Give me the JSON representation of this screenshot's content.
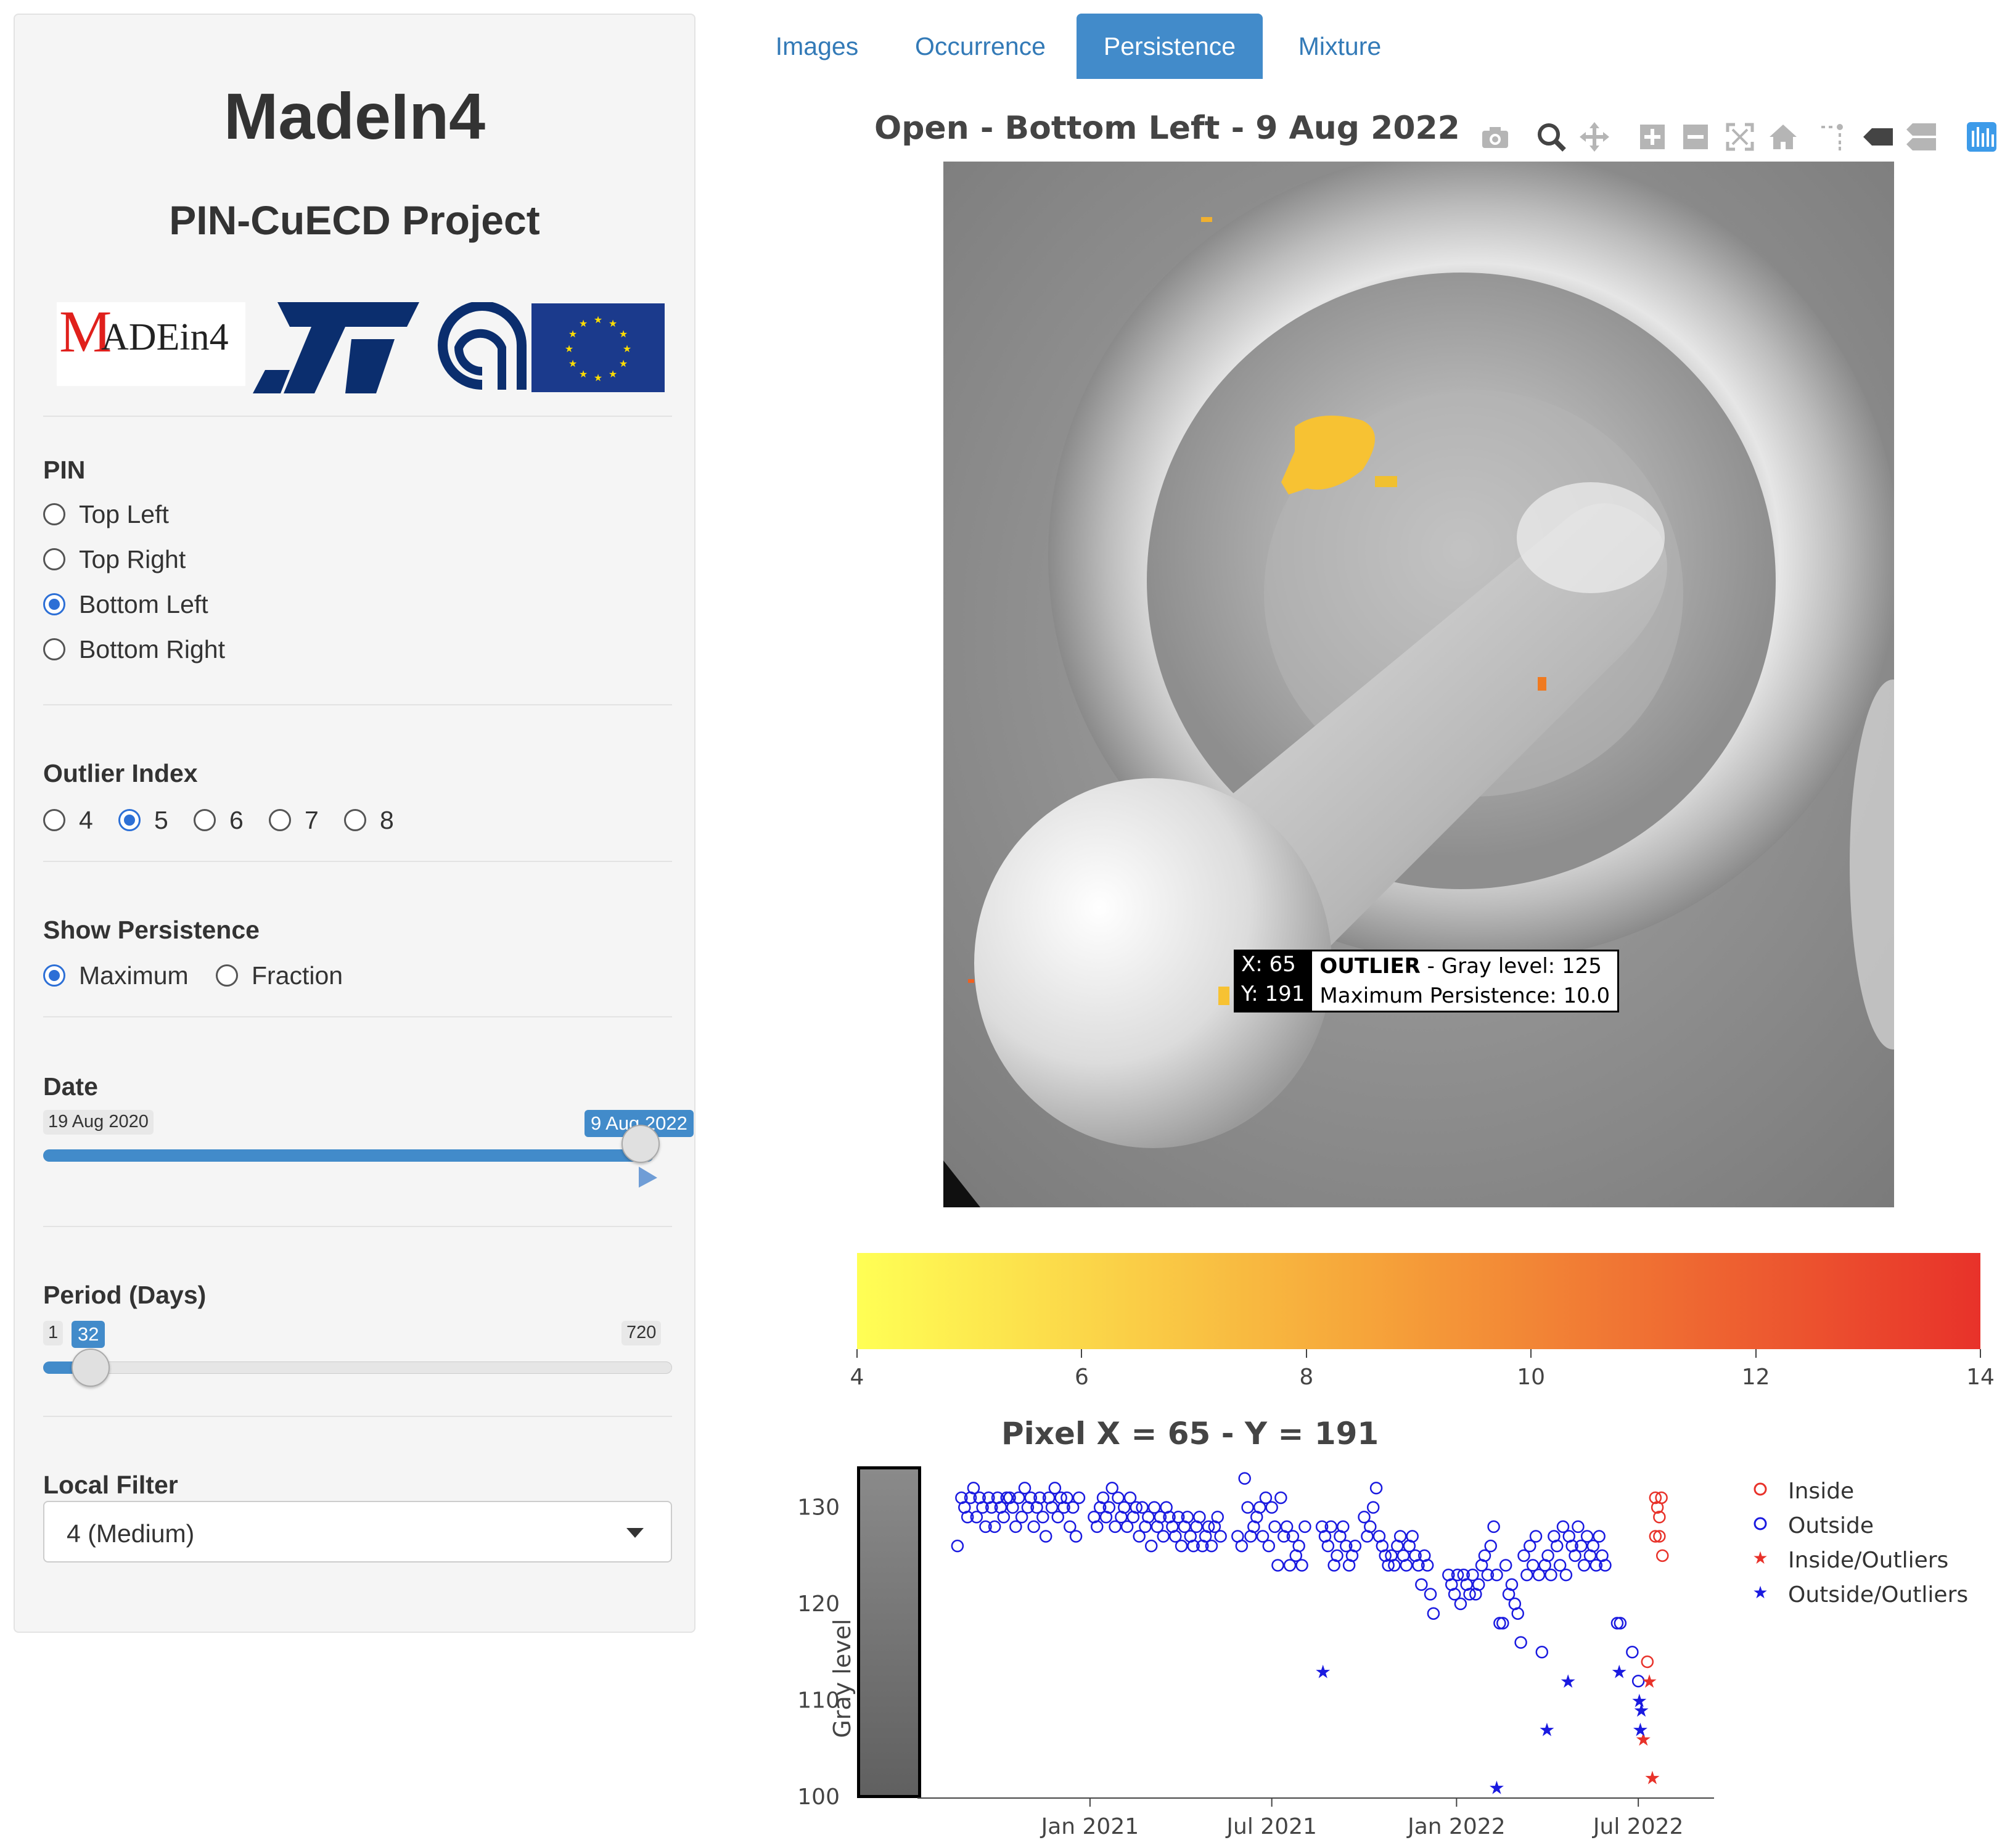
{
  "app": {
    "title": "MadeIn4",
    "subtitle": "PIN-CuECD Project"
  },
  "logos": {
    "madein4_m": "M",
    "madein4_rest": "ADEin4",
    "colors": {
      "eu_blue": "#1b3a8c",
      "st_blue": "#0b2e6e",
      "madein4_red": "#e0201c"
    }
  },
  "pin": {
    "label": "PIN",
    "options": [
      "Top Left",
      "Top Right",
      "Bottom Left",
      "Bottom Right"
    ],
    "selected": "Bottom Left"
  },
  "outlier_index": {
    "label": "Outlier Index",
    "options": [
      "4",
      "5",
      "6",
      "7",
      "8"
    ],
    "selected": "5"
  },
  "show_persistence": {
    "label": "Show Persistence",
    "options": [
      "Maximum",
      "Fraction"
    ],
    "selected": "Maximum"
  },
  "date": {
    "label": "Date",
    "min": "19 Aug 2020",
    "value": "9 Aug 2022",
    "fraction": 1.0
  },
  "period": {
    "label": "Period (Days)",
    "min": "1",
    "max": "720",
    "value": "32"
  },
  "local_filter": {
    "label": "Local Filter",
    "value": "4 (Medium)"
  },
  "tabs": [
    {
      "label": "Images",
      "active": false
    },
    {
      "label": "Occurrence",
      "active": false
    },
    {
      "label": "Persistence",
      "active": true
    },
    {
      "label": "Mixture",
      "active": false
    }
  ],
  "main_plot": {
    "title": "Open - Bottom Left - 9 Aug 2022",
    "tooltip": {
      "x_label": "X: 65",
      "y_label": "Y: 191",
      "bold": "OUTLIER",
      "line1_rest": " - Gray level: 125",
      "line2": "Maximum Persistence: 10.0"
    },
    "colorbar": {
      "ticks": [
        "4",
        "6",
        "8",
        "10",
        "12",
        "14"
      ],
      "min": 4,
      "max": 14,
      "colors": [
        "#ffff55",
        "#f6a53a",
        "#e8322a"
      ]
    },
    "modebar_icons": [
      "camera-icon",
      "zoom-icon",
      "pan-icon",
      "zoom-in-icon",
      "zoom-out-icon",
      "autoscale-icon",
      "reset-axes-icon",
      "spike-lines-icon",
      "hover-closest-icon",
      "hover-compare-icon",
      "plotly-logo-icon"
    ]
  },
  "pixel_plot": {
    "title": "Pixel X = 65 - Y = 191",
    "ylabel": "Gray level",
    "legend": [
      {
        "label": "Inside",
        "symbol": "circle",
        "color": "#e8322a"
      },
      {
        "label": "Outside",
        "symbol": "circle",
        "color": "#1a1ae0"
      },
      {
        "label": "Inside/Outliers",
        "symbol": "star",
        "color": "#e8322a"
      },
      {
        "label": "Outside/Outliers",
        "symbol": "star",
        "color": "#1a1ae0"
      }
    ],
    "colors": {
      "inside": "#e8322a",
      "outside": "#1a1ae0"
    }
  },
  "chart_data": {
    "type": "scatter",
    "title": "Pixel X = 65 - Y = 191",
    "xlabel": "",
    "ylabel": "Gray level",
    "x_ticks": [
      "Jan 2021",
      "Jul 2021",
      "Jan 2022",
      "Jul 2022"
    ],
    "y_ticks": [
      100,
      110,
      120,
      130
    ],
    "xlim": [
      "2020-08-19",
      "2022-08-27"
    ],
    "ylim": [
      100,
      134
    ],
    "series": [
      {
        "name": "Outside",
        "marker": "circle",
        "points": [
          [
            "2020-08-22",
            126
          ],
          [
            "2020-08-26",
            131
          ],
          [
            "2020-08-29",
            130
          ],
          [
            "2020-09-01",
            129
          ],
          [
            "2020-09-04",
            131
          ],
          [
            "2020-09-07",
            132
          ],
          [
            "2020-09-10",
            129
          ],
          [
            "2020-09-13",
            131
          ],
          [
            "2020-09-16",
            130
          ],
          [
            "2020-09-19",
            128
          ],
          [
            "2020-09-22",
            131
          ],
          [
            "2020-09-25",
            130
          ],
          [
            "2020-09-28",
            128
          ],
          [
            "2020-10-01",
            131
          ],
          [
            "2020-10-04",
            130
          ],
          [
            "2020-10-07",
            129
          ],
          [
            "2020-10-10",
            131
          ],
          [
            "2020-10-13",
            131
          ],
          [
            "2020-10-16",
            130
          ],
          [
            "2020-10-19",
            128
          ],
          [
            "2020-10-22",
            131
          ],
          [
            "2020-10-25",
            129
          ],
          [
            "2020-10-28",
            132
          ],
          [
            "2020-10-31",
            130
          ],
          [
            "2020-11-03",
            131
          ],
          [
            "2020-11-06",
            128
          ],
          [
            "2020-11-09",
            130
          ],
          [
            "2020-11-12",
            131
          ],
          [
            "2020-11-15",
            129
          ],
          [
            "2020-11-18",
            127
          ],
          [
            "2020-11-21",
            131
          ],
          [
            "2020-11-24",
            130
          ],
          [
            "2020-11-27",
            132
          ],
          [
            "2020-11-30",
            129
          ],
          [
            "2020-12-03",
            131
          ],
          [
            "2020-12-06",
            130
          ],
          [
            "2020-12-09",
            131
          ],
          [
            "2020-12-12",
            128
          ],
          [
            "2020-12-15",
            130
          ],
          [
            "2020-12-18",
            127
          ],
          [
            "2020-12-21",
            131
          ],
          [
            "2021-01-05",
            129
          ],
          [
            "2021-01-08",
            128
          ],
          [
            "2021-01-11",
            130
          ],
          [
            "2021-01-14",
            131
          ],
          [
            "2021-01-17",
            129
          ],
          [
            "2021-01-20",
            130
          ],
          [
            "2021-01-23",
            132
          ],
          [
            "2021-01-26",
            128
          ],
          [
            "2021-01-29",
            131
          ],
          [
            "2021-02-01",
            129
          ],
          [
            "2021-02-04",
            130
          ],
          [
            "2021-02-07",
            128
          ],
          [
            "2021-02-10",
            131
          ],
          [
            "2021-02-13",
            129
          ],
          [
            "2021-02-16",
            130
          ],
          [
            "2021-02-19",
            127
          ],
          [
            "2021-02-22",
            130
          ],
          [
            "2021-02-25",
            128
          ],
          [
            "2021-02-28",
            129
          ],
          [
            "2021-03-03",
            126
          ],
          [
            "2021-03-06",
            130
          ],
          [
            "2021-03-09",
            128
          ],
          [
            "2021-03-12",
            129
          ],
          [
            "2021-03-15",
            127
          ],
          [
            "2021-03-18",
            130
          ],
          [
            "2021-03-21",
            129
          ],
          [
            "2021-03-24",
            128
          ],
          [
            "2021-03-27",
            127
          ],
          [
            "2021-03-30",
            129
          ],
          [
            "2021-04-02",
            126
          ],
          [
            "2021-04-05",
            128
          ],
          [
            "2021-04-08",
            129
          ],
          [
            "2021-04-11",
            127
          ],
          [
            "2021-04-14",
            126
          ],
          [
            "2021-04-17",
            128
          ],
          [
            "2021-04-20",
            129
          ],
          [
            "2021-04-23",
            126
          ],
          [
            "2021-04-26",
            127
          ],
          [
            "2021-04-29",
            128
          ],
          [
            "2021-05-02",
            126
          ],
          [
            "2021-05-05",
            128
          ],
          [
            "2021-05-08",
            129
          ],
          [
            "2021-05-11",
            127
          ],
          [
            "2021-05-28",
            127
          ],
          [
            "2021-06-01",
            126
          ],
          [
            "2021-06-04",
            133
          ],
          [
            "2021-06-07",
            130
          ],
          [
            "2021-06-10",
            127
          ],
          [
            "2021-06-13",
            128
          ],
          [
            "2021-06-16",
            129
          ],
          [
            "2021-06-19",
            130
          ],
          [
            "2021-06-22",
            127
          ],
          [
            "2021-06-25",
            131
          ],
          [
            "2021-06-28",
            126
          ],
          [
            "2021-07-01",
            130
          ],
          [
            "2021-07-04",
            128
          ],
          [
            "2021-07-07",
            124
          ],
          [
            "2021-07-10",
            131
          ],
          [
            "2021-07-13",
            127
          ],
          [
            "2021-07-16",
            128
          ],
          [
            "2021-07-19",
            124
          ],
          [
            "2021-07-22",
            127
          ],
          [
            "2021-07-25",
            125
          ],
          [
            "2021-07-28",
            126
          ],
          [
            "2021-07-31",
            124
          ],
          [
            "2021-08-03",
            128
          ],
          [
            "2021-08-20",
            128
          ],
          [
            "2021-08-23",
            127
          ],
          [
            "2021-08-26",
            126
          ],
          [
            "2021-08-29",
            128
          ],
          [
            "2021-09-01",
            124
          ],
          [
            "2021-09-04",
            125
          ],
          [
            "2021-09-07",
            127
          ],
          [
            "2021-09-10",
            128
          ],
          [
            "2021-09-13",
            126
          ],
          [
            "2021-09-16",
            124
          ],
          [
            "2021-09-19",
            125
          ],
          [
            "2021-09-22",
            126
          ],
          [
            "2021-10-01",
            129
          ],
          [
            "2021-10-04",
            127
          ],
          [
            "2021-10-07",
            128
          ],
          [
            "2021-10-10",
            130
          ],
          [
            "2021-10-13",
            132
          ],
          [
            "2021-10-16",
            127
          ],
          [
            "2021-10-19",
            126
          ],
          [
            "2021-10-22",
            125
          ],
          [
            "2021-10-25",
            124
          ],
          [
            "2021-10-28",
            125
          ],
          [
            "2021-10-31",
            124
          ],
          [
            "2021-11-03",
            126
          ],
          [
            "2021-11-06",
            127
          ],
          [
            "2021-11-09",
            125
          ],
          [
            "2021-11-12",
            124
          ],
          [
            "2021-11-15",
            126
          ],
          [
            "2021-11-18",
            127
          ],
          [
            "2021-11-21",
            125
          ],
          [
            "2021-11-24",
            124
          ],
          [
            "2021-11-27",
            122
          ],
          [
            "2021-11-30",
            125
          ],
          [
            "2021-12-03",
            124
          ],
          [
            "2021-12-06",
            121
          ],
          [
            "2021-12-09",
            119
          ],
          [
            "2021-12-24",
            123
          ],
          [
            "2021-12-27",
            122
          ],
          [
            "2021-12-30",
            121
          ],
          [
            "2022-01-02",
            123
          ],
          [
            "2022-01-05",
            120
          ],
          [
            "2022-01-08",
            123
          ],
          [
            "2022-01-11",
            122
          ],
          [
            "2022-01-14",
            121
          ],
          [
            "2022-01-17",
            123
          ],
          [
            "2022-01-20",
            121
          ],
          [
            "2022-01-23",
            122
          ],
          [
            "2022-01-26",
            124
          ],
          [
            "2022-01-29",
            125
          ],
          [
            "2022-02-01",
            123
          ],
          [
            "2022-02-04",
            126
          ],
          [
            "2022-02-07",
            128
          ],
          [
            "2022-02-10",
            123
          ],
          [
            "2022-02-13",
            118
          ],
          [
            "2022-02-16",
            118
          ],
          [
            "2022-02-19",
            124
          ],
          [
            "2022-02-22",
            121
          ],
          [
            "2022-02-25",
            122
          ],
          [
            "2022-02-28",
            120
          ],
          [
            "2022-03-03",
            119
          ],
          [
            "2022-03-06",
            116
          ],
          [
            "2022-03-09",
            125
          ],
          [
            "2022-03-12",
            123
          ],
          [
            "2022-03-15",
            126
          ],
          [
            "2022-03-18",
            124
          ],
          [
            "2022-03-21",
            127
          ],
          [
            "2022-03-24",
            123
          ],
          [
            "2022-03-27",
            115
          ],
          [
            "2022-03-30",
            124
          ],
          [
            "2022-04-02",
            125
          ],
          [
            "2022-04-05",
            123
          ],
          [
            "2022-04-08",
            127
          ],
          [
            "2022-04-11",
            126
          ],
          [
            "2022-04-14",
            124
          ],
          [
            "2022-04-17",
            128
          ],
          [
            "2022-04-20",
            123
          ],
          [
            "2022-04-23",
            127
          ],
          [
            "2022-04-26",
            126
          ],
          [
            "2022-04-29",
            125
          ],
          [
            "2022-05-02",
            128
          ],
          [
            "2022-05-05",
            126
          ],
          [
            "2022-05-08",
            124
          ],
          [
            "2022-05-11",
            127
          ],
          [
            "2022-05-14",
            125
          ],
          [
            "2022-05-17",
            126
          ],
          [
            "2022-05-20",
            124
          ],
          [
            "2022-05-23",
            127
          ],
          [
            "2022-05-26",
            125
          ],
          [
            "2022-05-29",
            124
          ],
          [
            "2022-06-10",
            118
          ],
          [
            "2022-06-13",
            118
          ],
          [
            "2022-06-25",
            115
          ],
          [
            "2022-07-01",
            112
          ]
        ]
      },
      {
        "name": "Inside",
        "marker": "circle",
        "points": [
          [
            "2022-07-10",
            114
          ],
          [
            "2022-07-18",
            131
          ],
          [
            "2022-07-20",
            130
          ],
          [
            "2022-07-22",
            129
          ],
          [
            "2022-07-24",
            131
          ],
          [
            "2022-07-18",
            127
          ],
          [
            "2022-07-22",
            127
          ],
          [
            "2022-07-25",
            125
          ]
        ]
      },
      {
        "name": "Inside/Outliers",
        "marker": "star",
        "points": [
          [
            "2022-07-06",
            106
          ],
          [
            "2022-07-12",
            112
          ],
          [
            "2022-07-15",
            102
          ]
        ]
      },
      {
        "name": "Outside/Outliers",
        "marker": "star",
        "points": [
          [
            "2021-08-21",
            113
          ],
          [
            "2022-02-10",
            101
          ],
          [
            "2022-04-01",
            107
          ],
          [
            "2022-04-22",
            112
          ],
          [
            "2022-06-12",
            113
          ],
          [
            "2022-07-02",
            110
          ],
          [
            "2022-07-04",
            109
          ],
          [
            "2022-07-03",
            107
          ]
        ]
      }
    ]
  }
}
